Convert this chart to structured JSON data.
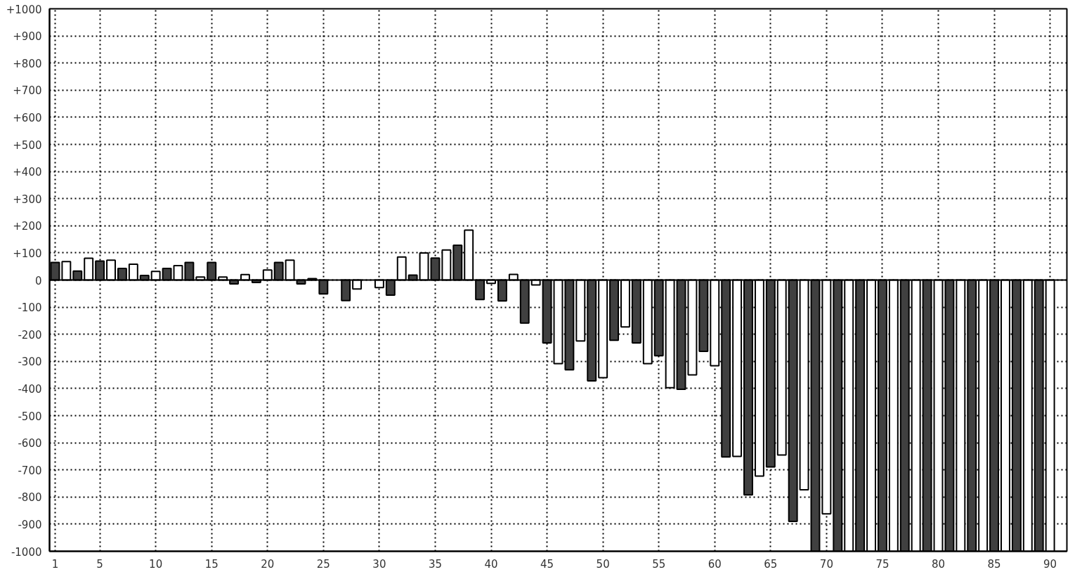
{
  "chart_data": {
    "type": "bar",
    "x": [
      1,
      2,
      3,
      4,
      5,
      6,
      7,
      8,
      9,
      10,
      11,
      12,
      13,
      14,
      15,
      16,
      17,
      18,
      19,
      20,
      21,
      22,
      23,
      24,
      25,
      26,
      27,
      28,
      29,
      30,
      31,
      32,
      33,
      34,
      35,
      36,
      37,
      38,
      39,
      40,
      41,
      42,
      43,
      44,
      45,
      46,
      47,
      48,
      49,
      50,
      51,
      52,
      53,
      54,
      55,
      56,
      57,
      58,
      59,
      60,
      61,
      62,
      63,
      64,
      65,
      66,
      67,
      68,
      69,
      70,
      71,
      72,
      73,
      74,
      75,
      76,
      77,
      78,
      79,
      80,
      81,
      82,
      83,
      84,
      85,
      86,
      87,
      88,
      89,
      90
    ],
    "series": [
      {
        "color": "#404040",
        "values": [
          65,
          null,
          33,
          null,
          70,
          null,
          43,
          null,
          17,
          null,
          43,
          null,
          65,
          null,
          65,
          null,
          -14,
          null,
          -9,
          null,
          65,
          null,
          -14,
          5,
          -51,
          null,
          -76,
          null,
          null,
          null,
          -56,
          null,
          18,
          null,
          81,
          null,
          128,
          null,
          -72,
          null,
          -77,
          null,
          -159,
          null,
          -232,
          null,
          -331,
          null,
          -372,
          null,
          -222,
          null,
          -232,
          null,
          -279,
          null,
          -403,
          null,
          -263,
          null,
          -652,
          null,
          -792,
          null,
          -689,
          null,
          -890,
          null,
          -1000,
          null,
          -1000,
          null,
          -1000,
          null,
          -1000,
          null,
          -1000,
          null,
          -1000,
          null,
          -1000,
          null,
          -1000,
          null,
          -1000,
          null,
          -1000,
          null,
          -1000,
          null
        ]
      },
      {
        "color": "#ffffff",
        "values": [
          null,
          68,
          null,
          80,
          null,
          73,
          null,
          58,
          null,
          32,
          null,
          53,
          null,
          11,
          null,
          11,
          null,
          20,
          null,
          37,
          null,
          73,
          null,
          null,
          null,
          null,
          null,
          -33,
          null,
          -28,
          null,
          85,
          null,
          100,
          null,
          111,
          null,
          184,
          null,
          -12,
          null,
          21,
          null,
          -18,
          null,
          -308,
          null,
          -225,
          null,
          -360,
          null,
          -173,
          null,
          -308,
          null,
          -397,
          null,
          -350,
          null,
          -316,
          null,
          -650,
          null,
          -723,
          null,
          -645,
          null,
          -773,
          null,
          -862,
          null,
          -1000,
          null,
          -1000,
          null,
          -1000,
          null,
          -1000,
          null,
          -1000,
          null,
          -1000,
          null,
          -1000,
          null,
          -1000,
          null,
          -1000,
          null,
          -1000
        ]
      }
    ],
    "xlim": [
      0.5,
      91.5
    ],
    "xticks": [
      1,
      5,
      10,
      15,
      20,
      25,
      30,
      35,
      40,
      45,
      50,
      55,
      60,
      65,
      70,
      75,
      80,
      85,
      90
    ],
    "ylim": [
      -1000,
      1000
    ],
    "yticks": [
      {
        "value": 1000,
        "label": "+1000"
      },
      {
        "value": 900,
        "label": "+900"
      },
      {
        "value": 800,
        "label": "+800"
      },
      {
        "value": 700,
        "label": "+700"
      },
      {
        "value": 600,
        "label": "+600"
      },
      {
        "value": 500,
        "label": "+500"
      },
      {
        "value": 400,
        "label": "+400"
      },
      {
        "value": 300,
        "label": "+300"
      },
      {
        "value": 200,
        "label": "+200"
      },
      {
        "value": 100,
        "label": "+100"
      },
      0,
      {
        "value": -100,
        "label": "-100"
      },
      {
        "value": -200,
        "label": "-200"
      },
      {
        "value": -300,
        "label": "-300"
      },
      {
        "value": -400,
        "label": "-400"
      },
      {
        "value": -500,
        "label": "-500"
      },
      {
        "value": -600,
        "label": "-600"
      },
      {
        "value": -700,
        "label": "-700"
      },
      {
        "value": -800,
        "label": "-800"
      },
      {
        "value": -900,
        "label": "-900"
      },
      {
        "value": -1000,
        "label": "-1000"
      }
    ],
    "ref_lines": [
      {
        "axis": "y",
        "value": 0,
        "color": "#000000"
      }
    ],
    "grid": true
  }
}
